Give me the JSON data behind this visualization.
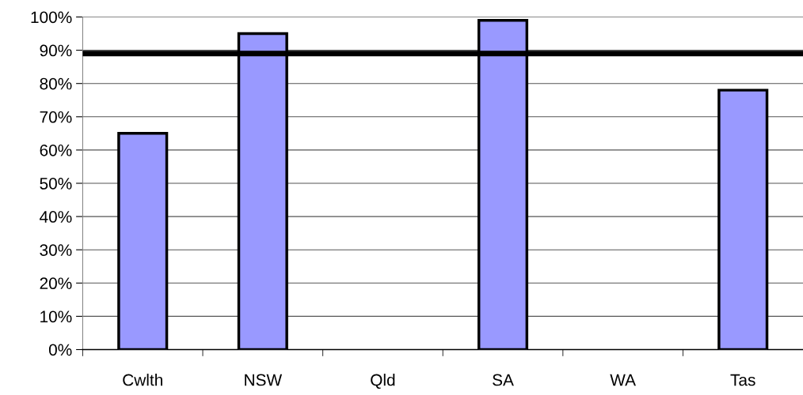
{
  "chart_data": {
    "type": "bar",
    "categories": [
      "Cwlth",
      "NSW",
      "Qld",
      "SA",
      "WA",
      "Tas"
    ],
    "values": [
      65,
      95,
      null,
      99,
      null,
      78
    ],
    "color": "#9999ff",
    "ylim": [
      0,
      100
    ],
    "yticks": [
      {
        "value": 0,
        "label": "0%"
      },
      {
        "value": 10,
        "label": "10%"
      },
      {
        "value": 20,
        "label": "20%"
      },
      {
        "value": 30,
        "label": "30%"
      },
      {
        "value": 40,
        "label": "40%"
      },
      {
        "value": 50,
        "label": "50%"
      },
      {
        "value": 60,
        "label": "60%"
      },
      {
        "value": 70,
        "label": "70%"
      },
      {
        "value": 80,
        "label": "80%"
      },
      {
        "value": 90,
        "label": "90%"
      },
      {
        "value": 100,
        "label": "100%"
      }
    ],
    "grid": "y",
    "ref_lines": [
      {
        "axis": "y",
        "value": 89,
        "color": "#000000",
        "line_style": "solid"
      }
    ]
  }
}
